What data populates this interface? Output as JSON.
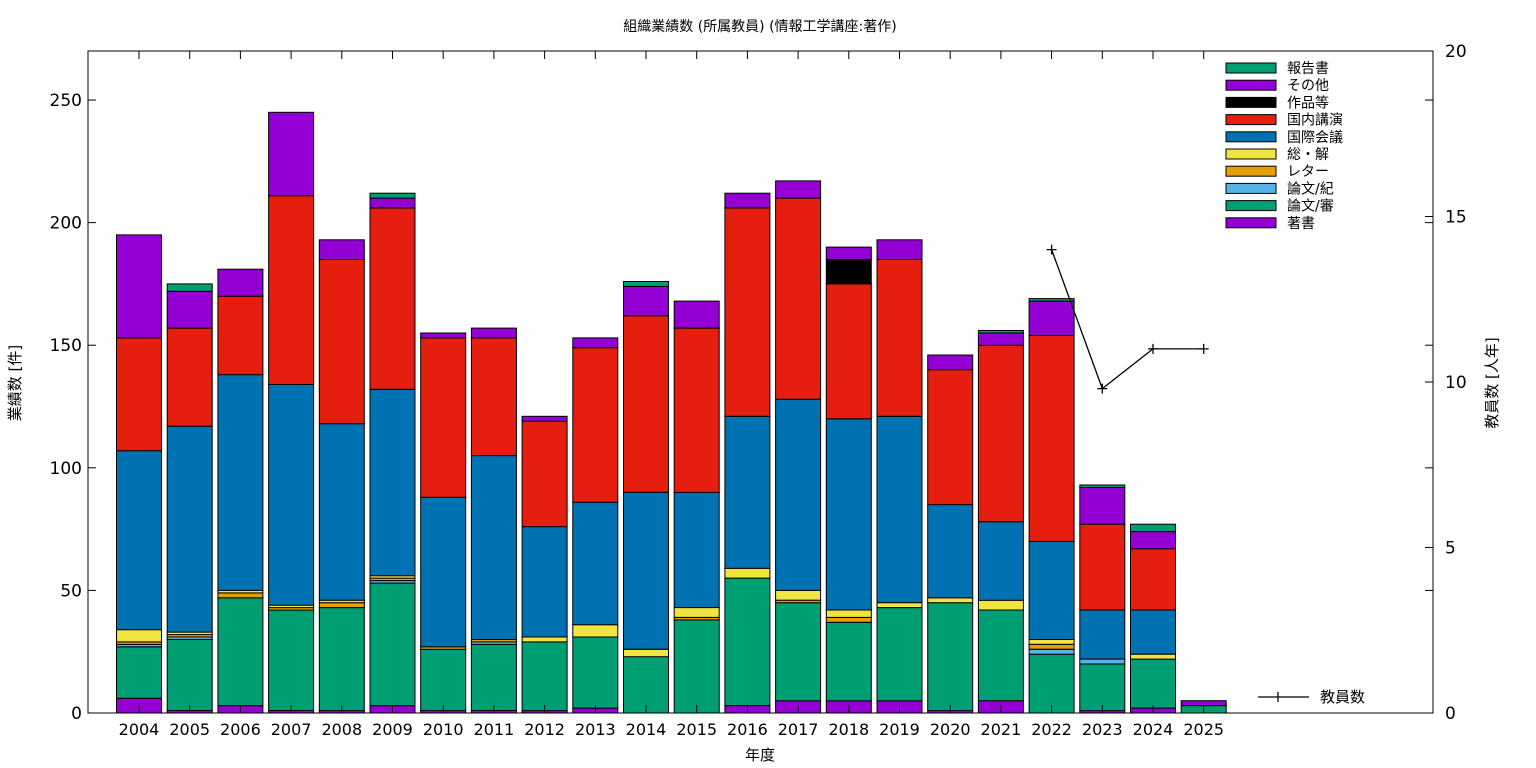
{
  "chart_data": {
    "type": "bar",
    "stacked": true,
    "title": "組織業績数 (所属教員) (情報工学講座:著作)",
    "xlabel": "年度",
    "ylabel": "業績数 [件]",
    "y2label": "教員数 [人年]",
    "ylim": [
      0,
      270
    ],
    "y2lim": [
      0,
      20
    ],
    "yticks": [
      0,
      50,
      100,
      150,
      200,
      250
    ],
    "y2ticks": [
      0,
      5,
      10,
      15,
      20
    ],
    "grid": false,
    "legend_position": "top-right",
    "categories": [
      "2004",
      "2005",
      "2006",
      "2007",
      "2008",
      "2009",
      "2010",
      "2011",
      "2012",
      "2013",
      "2014",
      "2015",
      "2016",
      "2017",
      "2018",
      "2019",
      "2020",
      "2021",
      "2022",
      "2023",
      "2024",
      "2025"
    ],
    "series": [
      {
        "name": "著書",
        "color": "#9400d3",
        "values": [
          6,
          1,
          3,
          1,
          1,
          3,
          1,
          1,
          1,
          2,
          0,
          0,
          3,
          5,
          5,
          5,
          1,
          5,
          0,
          1,
          2,
          0
        ]
      },
      {
        "name": "論文/審",
        "color": "#009e73",
        "values": [
          21,
          29,
          44,
          41,
          42,
          50,
          25,
          27,
          28,
          29,
          23,
          38,
          52,
          40,
          32,
          38,
          44,
          37,
          24,
          19,
          20,
          3
        ]
      },
      {
        "name": "論文/紀",
        "color": "#56b4e9",
        "values": [
          1,
          1,
          0,
          0,
          0,
          1,
          0,
          1,
          0,
          0,
          0,
          0,
          0,
          0,
          0,
          0,
          0,
          0,
          2,
          2,
          0,
          0
        ]
      },
      {
        "name": "レター",
        "color": "#e69f00",
        "values": [
          1,
          1,
          2,
          1,
          2,
          1,
          1,
          1,
          0,
          0,
          0,
          1,
          0,
          1,
          2,
          0,
          0,
          0,
          2,
          0,
          0,
          0
        ]
      },
      {
        "name": "総・解",
        "color": "#f0e442",
        "values": [
          5,
          1,
          1,
          1,
          1,
          1,
          0,
          0,
          2,
          5,
          3,
          4,
          4,
          4,
          3,
          2,
          2,
          4,
          2,
          0,
          2,
          0
        ]
      },
      {
        "name": "国際会議",
        "color": "#0072b2",
        "values": [
          73,
          84,
          88,
          90,
          72,
          76,
          61,
          75,
          45,
          50,
          64,
          47,
          62,
          78,
          78,
          76,
          38,
          32,
          40,
          20,
          18,
          0
        ]
      },
      {
        "name": "国内講演",
        "color": "#e51e10",
        "values": [
          46,
          40,
          32,
          77,
          67,
          74,
          65,
          48,
          43,
          63,
          72,
          67,
          85,
          82,
          55,
          64,
          55,
          72,
          84,
          35,
          25,
          0
        ]
      },
      {
        "name": "作品等",
        "color": "#000000",
        "values": [
          0,
          0,
          0,
          0,
          0,
          0,
          0,
          0,
          0,
          0,
          0,
          0,
          0,
          0,
          10,
          0,
          0,
          0,
          0,
          0,
          0,
          0
        ]
      },
      {
        "name": "その他",
        "color": "#9400d3",
        "values": [
          42,
          15,
          11,
          34,
          8,
          4,
          2,
          4,
          2,
          4,
          12,
          11,
          6,
          7,
          5,
          8,
          6,
          5,
          14,
          15,
          7,
          2
        ]
      },
      {
        "name": "報告書",
        "color": "#009e73",
        "values": [
          0,
          3,
          0,
          0,
          0,
          2,
          0,
          0,
          0,
          0,
          2,
          0,
          0,
          0,
          0,
          0,
          0,
          1,
          1,
          1,
          3,
          0
        ]
      }
    ],
    "line_series": {
      "name": "教員数",
      "axis": "y2",
      "color": "#000000",
      "x": [
        "2022",
        "2023",
        "2024",
        "2025"
      ],
      "values": [
        14,
        9.8,
        11,
        11
      ]
    },
    "legend_order": [
      "報告書",
      "その他",
      "作品等",
      "国内講演",
      "国際会議",
      "総・解",
      "レター",
      "論文/紀",
      "論文/審",
      "著書"
    ]
  }
}
